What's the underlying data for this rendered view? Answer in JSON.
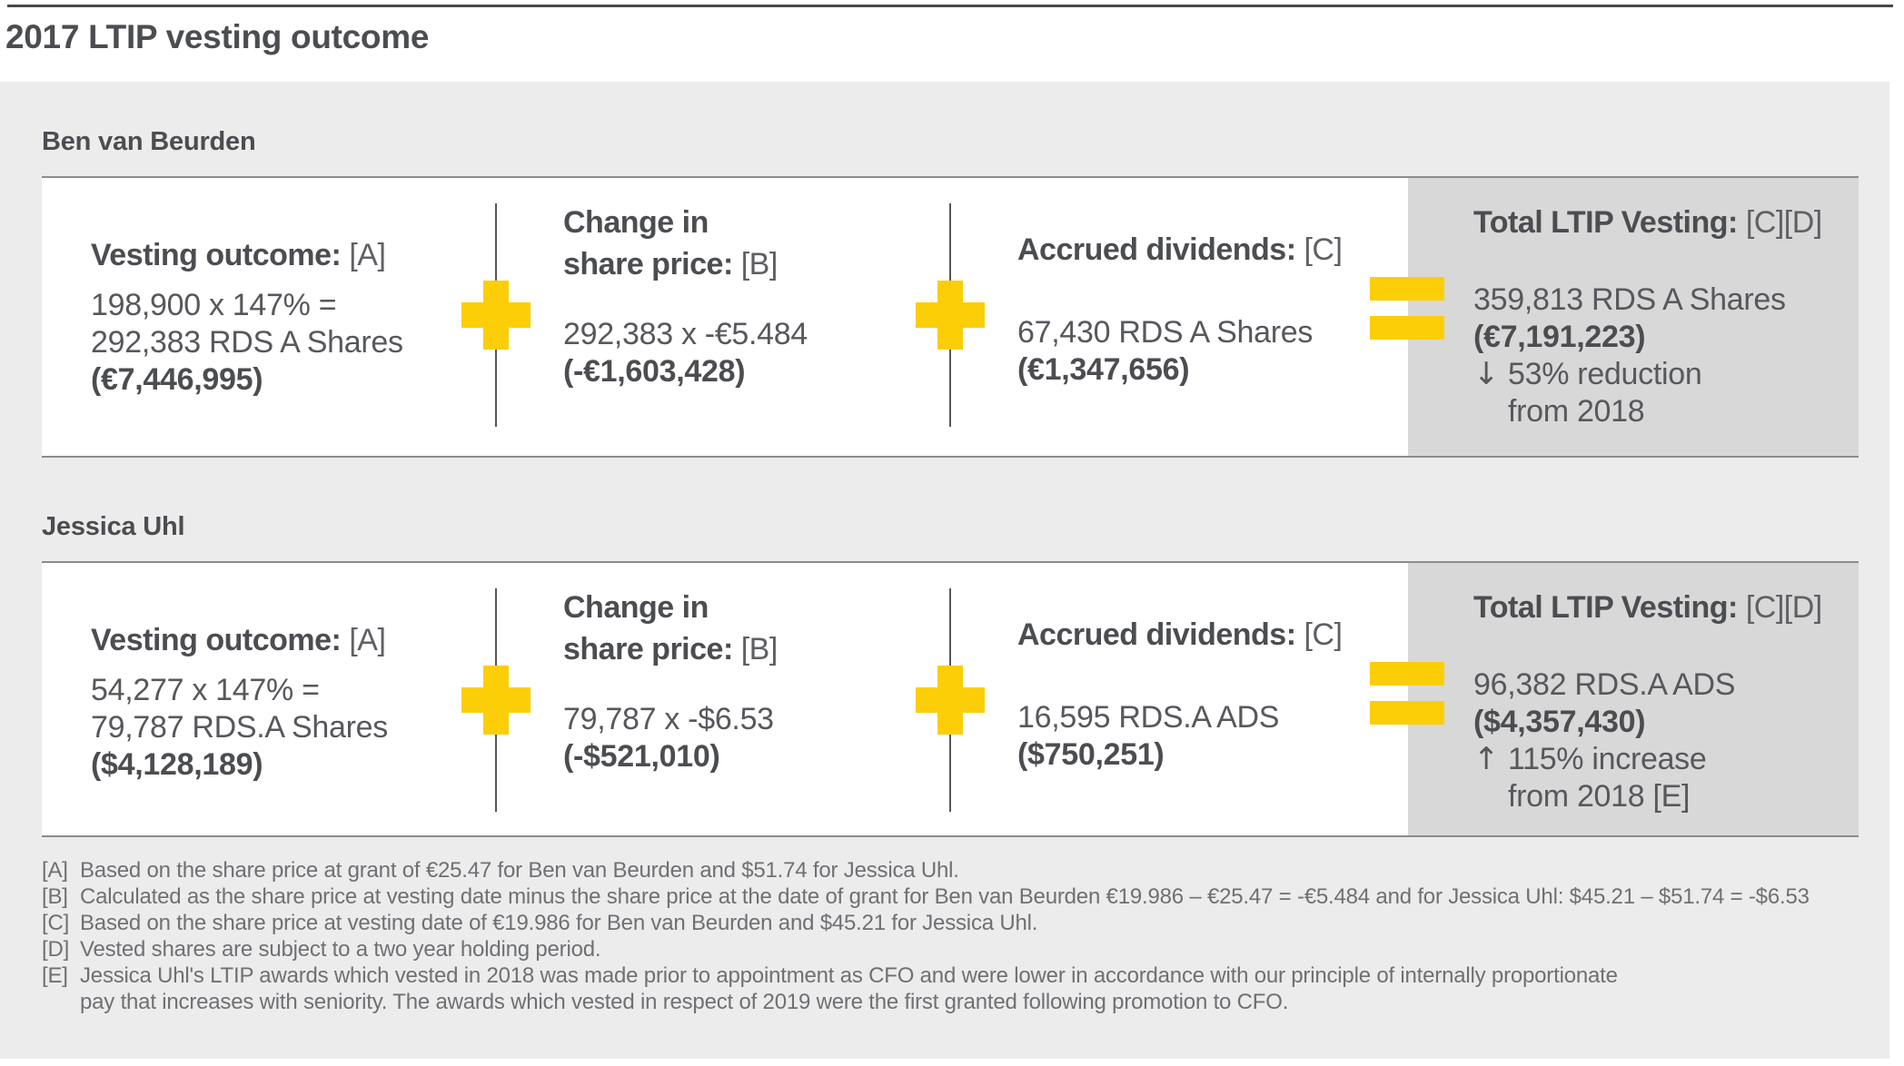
{
  "title": "2017 LTIP vesting outcome",
  "colors": {
    "accent_yellow": "#FBCE07",
    "text_dark": "#53565A",
    "footnote_gray": "#6E7074",
    "panel_gray": "#D8D8D8",
    "background_gray": "#ECECEC",
    "card_white": "#FFFFFF"
  },
  "icons": {
    "plus": "plus-icon (yellow cross shape)",
    "equals": "equals-icon (two yellow bars)"
  },
  "people": [
    {
      "name": "Ben van Beurden",
      "vesting": {
        "label": "Vesting outcome:",
        "ref": "[A]",
        "calc": "198,900 x 147% =",
        "result": "292,383 RDS A Shares",
        "amount": "(€7,446,995)"
      },
      "change": {
        "label_line1": "Change in",
        "label_line2": "share price:",
        "ref": "[B]",
        "calc": "292,383 x -€5.484",
        "amount": "(-€1,603,428)"
      },
      "dividends": {
        "label": "Accrued dividends:",
        "ref": "[C]",
        "result": "67,430 RDS A Shares",
        "amount": "(€1,347,656)"
      },
      "total": {
        "label": "Total LTIP Vesting:",
        "ref": "[C][D]",
        "result": "359,813 RDS A Shares",
        "amount": "(€7,191,223)",
        "delta_arrow": "↓",
        "delta_text": "53% reduction",
        "delta_continued": "from 2018"
      }
    },
    {
      "name": "Jessica Uhl",
      "vesting": {
        "label": "Vesting outcome:",
        "ref": "[A]",
        "calc": "54,277 x 147% =",
        "result": "79,787 RDS.A Shares",
        "amount": "($4,128,189)"
      },
      "change": {
        "label_line1": "Change in",
        "label_line2": "share price:",
        "ref": "[B]",
        "calc": "79,787 x -$6.53",
        "amount": "(-$521,010)"
      },
      "dividends": {
        "label": "Accrued dividends:",
        "ref": "[C]",
        "result": "16,595 RDS.A ADS",
        "amount": "($750,251)"
      },
      "total": {
        "label": "Total LTIP Vesting:",
        "ref": "[C][D]",
        "result": "96,382 RDS.A ADS",
        "amount": "($4,357,430)",
        "delta_arrow": "↑",
        "delta_text": "115% increase",
        "delta_continued": "from 2018 [E]"
      }
    }
  ],
  "footnotes": [
    {
      "label": "[A]",
      "text": "Based on the share price at grant of €25.47 for Ben van Beurden and $51.74 for Jessica Uhl."
    },
    {
      "label": "[B]",
      "text": "Calculated as the share price at vesting date minus the share price at the date of grant for Ben van Beurden €19.986 – €25.47 = -€5.484 and for Jessica Uhl: $45.21 – $51.74 = -$6.53"
    },
    {
      "label": "[C]",
      "text": "Based on the share price at vesting date of €19.986 for Ben van Beurden and $45.21 for Jessica Uhl."
    },
    {
      "label": "[D]",
      "text": "Vested shares are subject to a two year holding period."
    },
    {
      "label": "[E]",
      "text": "Jessica Uhl's LTIP awards which vested in 2018 was made prior to appointment as CFO and were lower in accordance with our principle of internally proportionate"
    },
    {
      "label": "",
      "text": "pay that increases with seniority. The awards which vested in respect of 2019 were the first granted following promotion to CFO."
    }
  ]
}
